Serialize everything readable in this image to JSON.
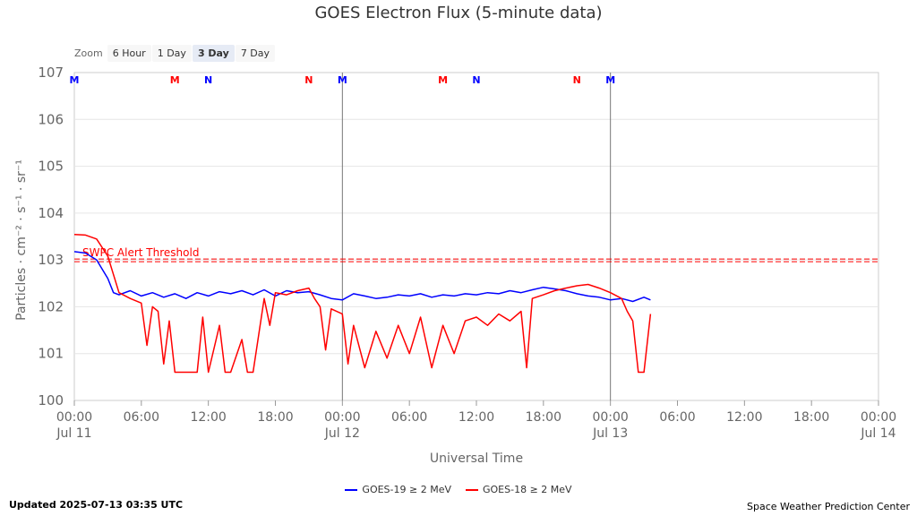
{
  "chart_data": {
    "type": "line",
    "title": "GOES Electron Flux (5-minute data)",
    "xlabel": "Universal Time",
    "ylabel": "Particles · cm⁻² · s⁻¹ · sr⁻¹",
    "y_scale": "log",
    "ylim": [
      1,
      10000000
    ],
    "xlim": [
      "2025-07-11 00:00",
      "2025-07-14 00:00"
    ],
    "grid": true,
    "legend_position": "bottom-center",
    "y_ticks": [
      {
        "value": 1,
        "base": "10",
        "exp": "0"
      },
      {
        "value": 10,
        "base": "10",
        "exp": "1"
      },
      {
        "value": 100,
        "base": "10",
        "exp": "2"
      },
      {
        "value": 1000,
        "base": "10",
        "exp": "3"
      },
      {
        "value": 10000,
        "base": "10",
        "exp": "4"
      },
      {
        "value": 100000,
        "base": "10",
        "exp": "5"
      },
      {
        "value": 1000000,
        "base": "10",
        "exp": "6"
      },
      {
        "value": 10000000,
        "base": "10",
        "exp": "7"
      }
    ],
    "x_ticks": [
      {
        "t": "2025-07-11 00:00",
        "time": "00:00",
        "date": "Jul 11"
      },
      {
        "t": "2025-07-11 06:00",
        "time": "06:00",
        "date": ""
      },
      {
        "t": "2025-07-11 12:00",
        "time": "12:00",
        "date": ""
      },
      {
        "t": "2025-07-11 18:00",
        "time": "18:00",
        "date": ""
      },
      {
        "t": "2025-07-12 00:00",
        "time": "00:00",
        "date": "Jul 12"
      },
      {
        "t": "2025-07-12 06:00",
        "time": "06:00",
        "date": ""
      },
      {
        "t": "2025-07-12 12:00",
        "time": "12:00",
        "date": ""
      },
      {
        "t": "2025-07-12 18:00",
        "time": "18:00",
        "date": ""
      },
      {
        "t": "2025-07-13 00:00",
        "time": "00:00",
        "date": "Jul 13"
      },
      {
        "t": "2025-07-13 06:00",
        "time": "06:00",
        "date": ""
      },
      {
        "t": "2025-07-13 12:00",
        "time": "12:00",
        "date": ""
      },
      {
        "t": "2025-07-13 18:00",
        "time": "18:00",
        "date": ""
      },
      {
        "t": "2025-07-14 00:00",
        "time": "00:00",
        "date": "Jul 14"
      }
    ],
    "day_boundaries": [
      "2025-07-12 00:00",
      "2025-07-13 00:00"
    ],
    "threshold": {
      "value": 1000,
      "label": "SWPC Alert Threshold",
      "color": "#ff0000"
    },
    "markers": [
      {
        "t": "2025-07-11 00:00",
        "label": "M",
        "color": "#0000ff"
      },
      {
        "t": "2025-07-11 09:00",
        "label": "M",
        "color": "#ff0000"
      },
      {
        "t": "2025-07-11 12:00",
        "label": "N",
        "color": "#0000ff"
      },
      {
        "t": "2025-07-11 21:00",
        "label": "N",
        "color": "#ff0000"
      },
      {
        "t": "2025-07-12 00:00",
        "label": "M",
        "color": "#0000ff"
      },
      {
        "t": "2025-07-12 09:00",
        "label": "M",
        "color": "#ff0000"
      },
      {
        "t": "2025-07-12 12:00",
        "label": "N",
        "color": "#0000ff"
      },
      {
        "t": "2025-07-12 21:00",
        "label": "N",
        "color": "#ff0000"
      },
      {
        "t": "2025-07-13 00:00",
        "label": "M",
        "color": "#0000ff"
      }
    ],
    "series": [
      {
        "name": "GOES-19 ≥ 2 MeV",
        "color": "#0000ff",
        "points": [
          [
            "2025-07-11 00:00",
            1500
          ],
          [
            "2025-07-11 01:00",
            1400
          ],
          [
            "2025-07-11 02:00",
            1000
          ],
          [
            "2025-07-11 03:00",
            400
          ],
          [
            "2025-07-11 03:30",
            200
          ],
          [
            "2025-07-11 04:00",
            180
          ],
          [
            "2025-07-11 05:00",
            220
          ],
          [
            "2025-07-11 06:00",
            170
          ],
          [
            "2025-07-11 07:00",
            200
          ],
          [
            "2025-07-11 08:00",
            160
          ],
          [
            "2025-07-11 09:00",
            190
          ],
          [
            "2025-07-11 10:00",
            150
          ],
          [
            "2025-07-11 11:00",
            200
          ],
          [
            "2025-07-11 12:00",
            170
          ],
          [
            "2025-07-11 13:00",
            210
          ],
          [
            "2025-07-11 14:00",
            190
          ],
          [
            "2025-07-11 15:00",
            220
          ],
          [
            "2025-07-11 16:00",
            180
          ],
          [
            "2025-07-11 17:00",
            230
          ],
          [
            "2025-07-11 18:00",
            170
          ],
          [
            "2025-07-11 19:00",
            220
          ],
          [
            "2025-07-11 20:00",
            200
          ],
          [
            "2025-07-11 21:00",
            210
          ],
          [
            "2025-07-11 22:00",
            180
          ],
          [
            "2025-07-11 23:00",
            150
          ],
          [
            "2025-07-12 00:00",
            140
          ],
          [
            "2025-07-12 01:00",
            190
          ],
          [
            "2025-07-12 02:00",
            170
          ],
          [
            "2025-07-12 03:00",
            150
          ],
          [
            "2025-07-12 04:00",
            160
          ],
          [
            "2025-07-12 05:00",
            180
          ],
          [
            "2025-07-12 06:00",
            170
          ],
          [
            "2025-07-12 07:00",
            190
          ],
          [
            "2025-07-12 08:00",
            160
          ],
          [
            "2025-07-12 09:00",
            180
          ],
          [
            "2025-07-12 10:00",
            170
          ],
          [
            "2025-07-12 11:00",
            190
          ],
          [
            "2025-07-12 12:00",
            180
          ],
          [
            "2025-07-12 13:00",
            200
          ],
          [
            "2025-07-12 14:00",
            190
          ],
          [
            "2025-07-12 15:00",
            220
          ],
          [
            "2025-07-12 16:00",
            200
          ],
          [
            "2025-07-12 17:00",
            230
          ],
          [
            "2025-07-12 18:00",
            260
          ],
          [
            "2025-07-12 19:00",
            240
          ],
          [
            "2025-07-12 20:00",
            220
          ],
          [
            "2025-07-12 21:00",
            190
          ],
          [
            "2025-07-12 22:00",
            170
          ],
          [
            "2025-07-12 23:00",
            160
          ],
          [
            "2025-07-13 00:00",
            140
          ],
          [
            "2025-07-13 01:00",
            150
          ],
          [
            "2025-07-13 02:00",
            130
          ],
          [
            "2025-07-13 03:00",
            160
          ],
          [
            "2025-07-13 03:35",
            140
          ]
        ]
      },
      {
        "name": "GOES-18 ≥ 2 MeV",
        "color": "#ff0000",
        "points": [
          [
            "2025-07-11 00:00",
            3500
          ],
          [
            "2025-07-11 01:00",
            3400
          ],
          [
            "2025-07-11 02:00",
            2800
          ],
          [
            "2025-07-11 03:00",
            1200
          ],
          [
            "2025-07-11 04:00",
            200
          ],
          [
            "2025-07-11 05:00",
            150
          ],
          [
            "2025-07-11 06:00",
            120
          ],
          [
            "2025-07-11 06:30",
            15
          ],
          [
            "2025-07-11 07:00",
            100
          ],
          [
            "2025-07-11 07:30",
            80
          ],
          [
            "2025-07-11 08:00",
            6
          ],
          [
            "2025-07-11 08:30",
            50
          ],
          [
            "2025-07-11 09:00",
            4
          ],
          [
            "2025-07-11 10:00",
            4
          ],
          [
            "2025-07-11 11:00",
            4
          ],
          [
            "2025-07-11 11:30",
            60
          ],
          [
            "2025-07-11 12:00",
            4
          ],
          [
            "2025-07-11 13:00",
            40
          ],
          [
            "2025-07-11 13:30",
            4
          ],
          [
            "2025-07-11 14:00",
            4
          ],
          [
            "2025-07-11 15:00",
            20
          ],
          [
            "2025-07-11 15:30",
            4
          ],
          [
            "2025-07-11 16:00",
            4
          ],
          [
            "2025-07-11 17:00",
            150
          ],
          [
            "2025-07-11 17:30",
            40
          ],
          [
            "2025-07-11 18:00",
            200
          ],
          [
            "2025-07-11 19:00",
            180
          ],
          [
            "2025-07-11 20:00",
            220
          ],
          [
            "2025-07-11 21:00",
            250
          ],
          [
            "2025-07-11 21:30",
            150
          ],
          [
            "2025-07-11 22:00",
            100
          ],
          [
            "2025-07-11 22:30",
            12
          ],
          [
            "2025-07-11 23:00",
            90
          ],
          [
            "2025-07-12 00:00",
            70
          ],
          [
            "2025-07-12 00:30",
            6
          ],
          [
            "2025-07-12 01:00",
            40
          ],
          [
            "2025-07-12 02:00",
            5
          ],
          [
            "2025-07-12 03:00",
            30
          ],
          [
            "2025-07-12 04:00",
            8
          ],
          [
            "2025-07-12 05:00",
            40
          ],
          [
            "2025-07-12 06:00",
            10
          ],
          [
            "2025-07-12 07:00",
            60
          ],
          [
            "2025-07-12 08:00",
            5
          ],
          [
            "2025-07-12 09:00",
            40
          ],
          [
            "2025-07-12 10:00",
            10
          ],
          [
            "2025-07-12 11:00",
            50
          ],
          [
            "2025-07-12 12:00",
            60
          ],
          [
            "2025-07-12 13:00",
            40
          ],
          [
            "2025-07-12 14:00",
            70
          ],
          [
            "2025-07-12 15:00",
            50
          ],
          [
            "2025-07-12 16:00",
            80
          ],
          [
            "2025-07-12 16:30",
            5
          ],
          [
            "2025-07-12 17:00",
            150
          ],
          [
            "2025-07-12 18:00",
            180
          ],
          [
            "2025-07-12 19:00",
            220
          ],
          [
            "2025-07-12 20:00",
            250
          ],
          [
            "2025-07-12 21:00",
            280
          ],
          [
            "2025-07-12 22:00",
            300
          ],
          [
            "2025-07-12 23:00",
            250
          ],
          [
            "2025-07-13 00:00",
            200
          ],
          [
            "2025-07-13 01:00",
            150
          ],
          [
            "2025-07-13 01:30",
            80
          ],
          [
            "2025-07-13 02:00",
            50
          ],
          [
            "2025-07-13 02:30",
            4
          ],
          [
            "2025-07-13 03:00",
            4
          ],
          [
            "2025-07-13 03:35",
            70
          ]
        ]
      }
    ]
  },
  "zoom": {
    "label": "Zoom",
    "options": [
      "6 Hour",
      "1 Day",
      "3 Day",
      "7 Day"
    ],
    "selected": "3 Day"
  },
  "footer": {
    "updated": "Updated 2025-07-13 03:35 UTC",
    "credit": "Space Weather Prediction Center"
  }
}
